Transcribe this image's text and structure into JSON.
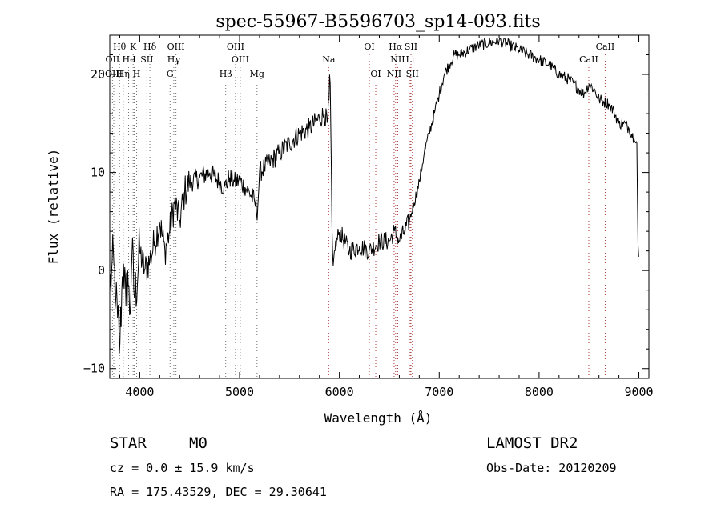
{
  "chart_data": {
    "type": "line",
    "title": "spec-55967-B5596703_sp14-093.fits",
    "xlabel": "Wavelength (Å)",
    "ylabel": "Flux (relative)",
    "xlim": [
      3700,
      9100
    ],
    "ylim": [
      -11,
      24
    ],
    "xticks": [
      4000,
      5000,
      6000,
      7000,
      8000,
      9000
    ],
    "xtick_labels": [
      "4000",
      "5000",
      "6000",
      "7000",
      "8000",
      "9000"
    ],
    "yticks": [
      -10,
      0,
      10,
      20
    ],
    "ytick_labels": [
      "−10",
      "0",
      "10",
      "20"
    ],
    "series": [
      {
        "name": "flux",
        "x": [
          3700,
          3720,
          3740,
          3760,
          3780,
          3800,
          3820,
          3840,
          3860,
          3880,
          3900,
          3920,
          3950,
          4000,
          4050,
          4100,
          4150,
          4200,
          4250,
          4300,
          4350,
          4400,
          4450,
          4500,
          4600,
          4700,
          4800,
          4850,
          4900,
          4950,
          5000,
          5050,
          5100,
          5150,
          5180,
          5200,
          5250,
          5300,
          5400,
          5500,
          5600,
          5700,
          5800,
          5850,
          5880,
          5895,
          5905,
          5915,
          5925,
          5935,
          5950,
          6000,
          6100,
          6200,
          6300,
          6400,
          6500,
          6550,
          6600,
          6650,
          6700,
          6750,
          6800,
          6850,
          6900,
          6950,
          7000,
          7050,
          7100,
          7150,
          7200,
          7300,
          7400,
          7500,
          7600,
          7700,
          7800,
          7900,
          8000,
          8100,
          8200,
          8300,
          8400,
          8450,
          8500,
          8550,
          8600,
          8650,
          8700,
          8750,
          8800,
          8850,
          8900,
          8950,
          8980,
          8990,
          9000
        ],
        "y": [
          -2,
          0,
          1,
          -3,
          -5,
          -8,
          -2,
          1,
          -4,
          0,
          -5,
          2,
          -3,
          2,
          0,
          1,
          3,
          5,
          2,
          4,
          7,
          5,
          8,
          9,
          9.5,
          10,
          9,
          8.5,
          9.5,
          9,
          9.2,
          8.5,
          8,
          7,
          6,
          10,
          10.5,
          11,
          12,
          13,
          14,
          14.5,
          15.5,
          16,
          15,
          17,
          21,
          14,
          5,
          0,
          2,
          4,
          2,
          2.5,
          2,
          3,
          3,
          4,
          3,
          4,
          5,
          7,
          9,
          12,
          14,
          16,
          18,
          20,
          21,
          22,
          22,
          22.5,
          23,
          23.2,
          23.5,
          23,
          22.5,
          22,
          21.5,
          21,
          20,
          19.5,
          18.5,
          18,
          19,
          18.5,
          17.5,
          17.2,
          17,
          16.2,
          15,
          15,
          14.5,
          13.5,
          13,
          3,
          1
        ]
      }
    ],
    "line_markers": [
      {
        "label": "Hθ",
        "x": 3798,
        "row": 1
      },
      {
        "label": "K",
        "x": 3934,
        "row": 1
      },
      {
        "label": "Hδ",
        "x": 4102,
        "row": 1
      },
      {
        "label": "OIII",
        "x": 4363,
        "row": 1
      },
      {
        "label": "OIII",
        "x": 4959,
        "row": 1
      },
      {
        "label": "OI",
        "x": 6300,
        "row": 1
      },
      {
        "label": "Hα",
        "x": 6563,
        "row": 1
      },
      {
        "label": "SII",
        "x": 6717,
        "row": 1
      },
      {
        "label": "CaII",
        "x": 8662,
        "row": 1
      },
      {
        "label": "OII",
        "x": 3727,
        "row": 2
      },
      {
        "label": "He",
        "x": 3889,
        "row": 2
      },
      {
        "label": "I",
        "x": 3945,
        "row": 2
      },
      {
        "label": "SII",
        "x": 4072,
        "row": 2
      },
      {
        "label": "Hγ",
        "x": 4341,
        "row": 2
      },
      {
        "label": "OIII",
        "x": 5007,
        "row": 2
      },
      {
        "label": "Na",
        "x": 5893,
        "row": 2
      },
      {
        "label": "NII",
        "x": 6584,
        "row": 2
      },
      {
        "label": "Li",
        "x": 6708,
        "row": 2
      },
      {
        "label": "CaII",
        "x": 8498,
        "row": 2
      },
      {
        "label": "OIII",
        "x": 3740,
        "row": 3
      },
      {
        "label": "Hη",
        "x": 3835,
        "row": 3
      },
      {
        "label": "H",
        "x": 3969,
        "row": 3
      },
      {
        "label": "G",
        "x": 4304,
        "row": 3
      },
      {
        "label": "Hβ",
        "x": 4861,
        "row": 3
      },
      {
        "label": "Mg",
        "x": 5175,
        "row": 3
      },
      {
        "label": "OI",
        "x": 6364,
        "row": 3
      },
      {
        "label": "NII",
        "x": 6548,
        "row": 3
      },
      {
        "label": "SII",
        "x": 6731,
        "row": 3
      }
    ]
  },
  "info": {
    "object_class": "STAR",
    "subclass": "M0",
    "survey": "LAMOST DR2",
    "cz": "cz = 0.0 ± 15.9 km/s",
    "obs_date": "Obs-Date: 20120209",
    "coords": "RA = 175.43529, DEC =  29.30641"
  }
}
